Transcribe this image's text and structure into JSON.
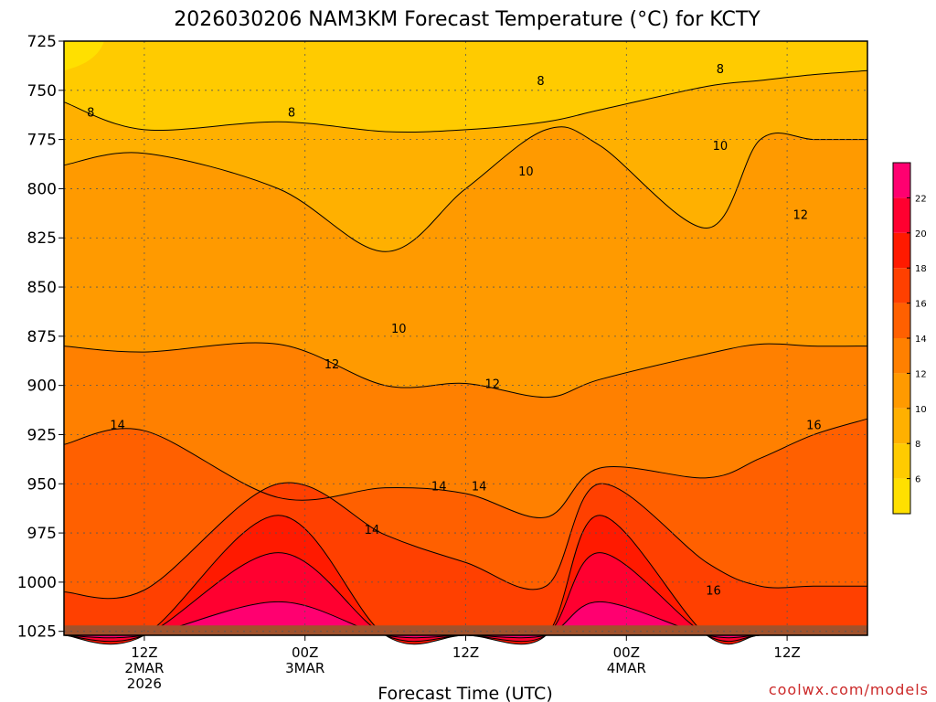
{
  "chart_data": {
    "type": "heatmap",
    "subtype": "filled-contour time-height",
    "title": "2026030206 NAM3KM Forecast Temperature (°C) for KCTY",
    "xlabel": "Forecast Time (UTC)",
    "ylabel": "",
    "y_axis": {
      "unit": "hPa",
      "inverted": true,
      "range": [
        725,
        1027
      ],
      "ticks": [
        725,
        750,
        775,
        800,
        825,
        850,
        875,
        900,
        925,
        950,
        975,
        1000,
        1025
      ]
    },
    "x_axis": {
      "unit": "forecast hour",
      "range": [
        6,
        66
      ],
      "ticks": [
        {
          "hour": 12,
          "lines": [
            "12Z",
            "2MAR",
            "2026"
          ]
        },
        {
          "hour": 24,
          "lines": [
            "00Z",
            "3MAR"
          ]
        },
        {
          "hour": 36,
          "lines": [
            "12Z"
          ]
        },
        {
          "hour": 48,
          "lines": [
            "00Z",
            "4MAR"
          ]
        },
        {
          "hour": 60,
          "lines": [
            "12Z"
          ]
        }
      ]
    },
    "grid": "dotted",
    "contour_levels": [
      6,
      8,
      10,
      12,
      14,
      16,
      18,
      20,
      22
    ],
    "legend": {
      "placement": "right",
      "labels": [
        "6",
        "8",
        "10",
        "12",
        "14",
        "16",
        "18",
        "20",
        "22"
      ],
      "colors": [
        "#ffe000",
        "#ffcb00",
        "#ffb000",
        "#ff9a00",
        "#ff8000",
        "#ff6000",
        "#ff4000",
        "#ff1a00",
        "#ff0030",
        "#ff0070"
      ]
    },
    "ground_color": "#a0522d",
    "series": [
      {
        "level": 8,
        "p": [
          756,
          770,
          766,
          771,
          770,
          766,
          760,
          748,
          745,
          742,
          740
        ]
      },
      {
        "level": 10,
        "p": [
          788,
          782,
          800,
          832,
          800,
          770,
          778,
          820,
          775,
          775,
          775
        ]
      },
      {
        "level": 12,
        "p": [
          880,
          883,
          879,
          900,
          899,
          906,
          897,
          884,
          879,
          880,
          880
        ]
      },
      {
        "level": 14,
        "p": [
          930,
          923,
          957,
          952,
          955,
          967,
          942,
          947,
          937,
          925,
          917
        ]
      },
      {
        "level": 16,
        "p": [
          1005,
          1004,
          950,
          976,
          990,
          1002,
          950,
          990,
          1002,
          1002,
          1002
        ]
      },
      {
        "level": 18,
        "p": [
          1027,
          1027,
          966,
          1027,
          1027,
          1027,
          966,
          1027,
          1027,
          1027,
          1027
        ]
      },
      {
        "level": 20,
        "p": [
          1027,
          1027,
          985,
          1027,
          1027,
          1027,
          985,
          1027,
          1027,
          1027,
          1027
        ]
      },
      {
        "level": 22,
        "p": [
          1027,
          1027,
          1010,
          1027,
          1027,
          1027,
          1010,
          1027,
          1027,
          1027,
          1027
        ]
      }
    ],
    "x_hours": [
      6,
      12,
      22,
      30,
      36,
      42,
      46,
      54,
      58,
      62,
      66
    ],
    "contour_labels": [
      {
        "text": "8",
        "hour": 8.0,
        "p": 761
      },
      {
        "text": "8",
        "hour": 23.0,
        "p": 761
      },
      {
        "text": "8",
        "hour": 41.6,
        "p": 745
      },
      {
        "text": "8",
        "hour": 55.0,
        "p": 739
      },
      {
        "text": "10",
        "hour": 40.5,
        "p": 791
      },
      {
        "text": "10",
        "hour": 55.0,
        "p": 778
      },
      {
        "text": "10",
        "hour": 31.0,
        "p": 871
      },
      {
        "text": "12",
        "hour": 61.0,
        "p": 813
      },
      {
        "text": "12",
        "hour": 26.0,
        "p": 889
      },
      {
        "text": "12",
        "hour": 38.0,
        "p": 899
      },
      {
        "text": "14",
        "hour": 10.0,
        "p": 920
      },
      {
        "text": "14",
        "hour": 34.0,
        "p": 951
      },
      {
        "text": "14",
        "hour": 37.0,
        "p": 951
      },
      {
        "text": "14",
        "hour": 29.0,
        "p": 973
      },
      {
        "text": "16",
        "hour": 62.0,
        "p": 920
      },
      {
        "text": "16",
        "hour": 54.5,
        "p": 1004
      }
    ]
  },
  "credit": "coolwx.com/models"
}
